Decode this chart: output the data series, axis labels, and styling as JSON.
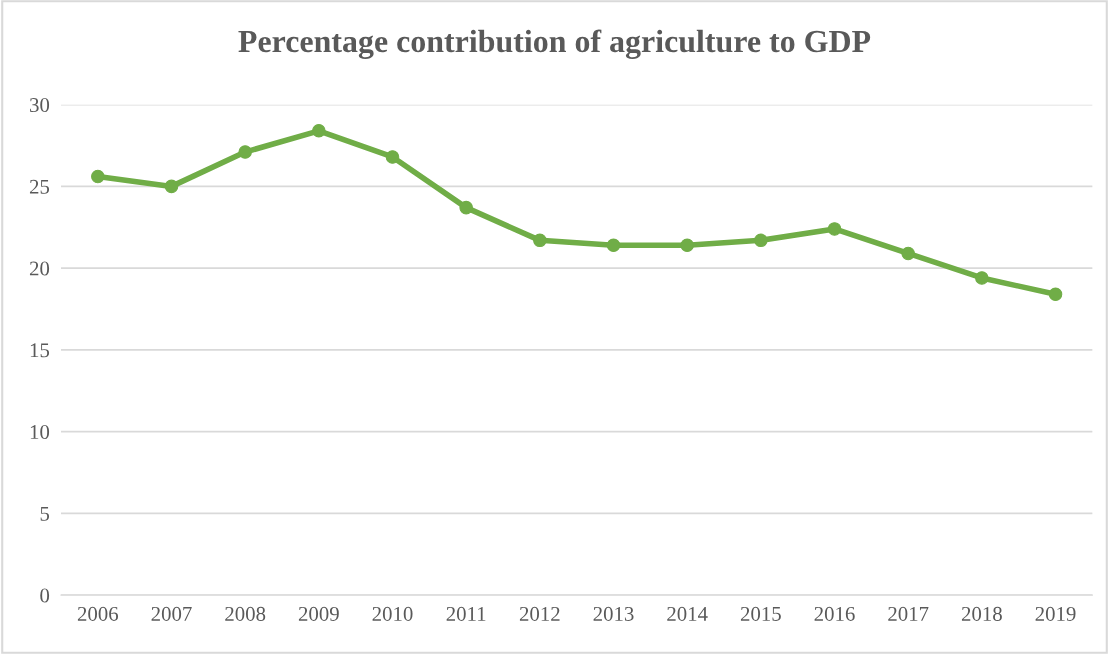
{
  "chart_data": {
    "type": "line",
    "title": "Percentage contribution of agriculture to GDP",
    "categories": [
      "2006",
      "2007",
      "2008",
      "2009",
      "2010",
      "2011",
      "2012",
      "2013",
      "2014",
      "2015",
      "2016",
      "2017",
      "2018",
      "2019"
    ],
    "series": [
      {
        "color": "#70ad47",
        "values": [
          25.6,
          25.0,
          27.1,
          28.4,
          26.8,
          23.7,
          21.7,
          21.4,
          21.4,
          21.7,
          22.4,
          20.9,
          19.4,
          18.4
        ]
      }
    ],
    "ylim": [
      0,
      30
    ],
    "yticks": [
      0,
      5,
      10,
      15,
      20,
      25,
      30
    ],
    "grid": "y",
    "marker": "circle",
    "line_style": "solid",
    "legend": false
  }
}
